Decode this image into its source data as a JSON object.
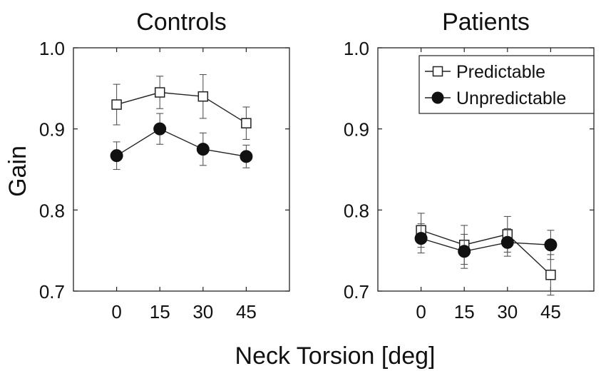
{
  "figure": {
    "ylabel": "Gain",
    "xlabel": "Neck Torsion [deg]"
  },
  "chart_data": [
    {
      "type": "line",
      "title": "Controls",
      "ylabel": "Gain",
      "xlabel": "Neck Torsion [deg]",
      "x": [
        0,
        15,
        30,
        45
      ],
      "xlim": [
        -15,
        60
      ],
      "ylim": [
        0.7,
        1.0
      ],
      "xticks": [
        "0",
        "15",
        "30",
        "45"
      ],
      "yticks": [
        "0.7",
        "0.8",
        "0.9",
        "1.0"
      ],
      "grid": false,
      "series": [
        {
          "name": "Predictable",
          "marker": "open-square",
          "values": [
            0.93,
            0.945,
            0.94,
            0.907
          ],
          "error": [
            0.025,
            0.02,
            0.027,
            0.02
          ]
        },
        {
          "name": "Unpredictable",
          "marker": "filled-circle",
          "values": [
            0.867,
            0.9,
            0.875,
            0.866
          ],
          "error": [
            0.017,
            0.019,
            0.02,
            0.014
          ]
        }
      ]
    },
    {
      "type": "line",
      "title": "Patients",
      "ylabel": "",
      "xlabel": "Neck Torsion [deg]",
      "x": [
        0,
        15,
        30,
        45
      ],
      "xlim": [
        -15,
        60
      ],
      "ylim": [
        0.7,
        1.0
      ],
      "xticks": [
        "0",
        "15",
        "30",
        "45"
      ],
      "yticks": [
        "0.7",
        "0.8",
        "0.9",
        "1.0"
      ],
      "grid": false,
      "legend": {
        "placement": "top-right",
        "entries": [
          "Predictable",
          "Unpredictable"
        ]
      },
      "series": [
        {
          "name": "Predictable",
          "marker": "open-square",
          "values": [
            0.775,
            0.757,
            0.77,
            0.72
          ],
          "error": [
            0.021,
            0.024,
            0.022,
            0.025
          ]
        },
        {
          "name": "Unpredictable",
          "marker": "filled-circle",
          "values": [
            0.765,
            0.749,
            0.76,
            0.757
          ],
          "error": [
            0.018,
            0.021,
            0.017,
            0.018
          ]
        }
      ]
    }
  ]
}
